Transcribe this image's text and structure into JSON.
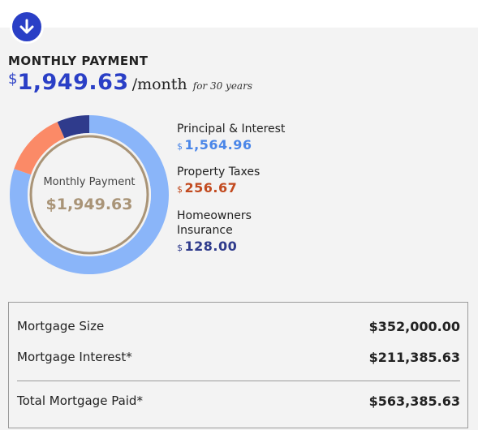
{
  "header": {
    "title": "MONTHLY PAYMENT",
    "currency_symbol": "$",
    "amount": "1,949.63",
    "per": "/month",
    "term": "for 30 years"
  },
  "donut": {
    "label": "Monthly Payment",
    "value": "$1,949.63"
  },
  "breakdown": [
    {
      "label": "Principal & Interest",
      "currency": "$",
      "value": "1,564.96",
      "amount": 1564.96,
      "color": "#8ab5f9"
    },
    {
      "label": "Property Taxes",
      "currency": "$",
      "value": "256.67",
      "amount": 256.67,
      "color": "#fb8a67"
    },
    {
      "label": "Homeowners\nInsurance",
      "currency": "$",
      "value": "128.00",
      "amount": 128.0,
      "color": "#2f3b8c"
    }
  ],
  "value_colors": [
    "#4a86e8",
    "#c24a1f",
    "#2f3b8c"
  ],
  "summary": {
    "rows": [
      {
        "label": "Mortgage Size",
        "value": "$352,000.00"
      },
      {
        "label": "Mortgage Interest*",
        "value": "$211,385.63"
      }
    ],
    "total": {
      "label": "Total Mortgage Paid*",
      "value": "$563,385.63"
    }
  },
  "icons": {
    "scroll": "arrow-down-icon"
  },
  "colors": {
    "accent": "#2a3fc6",
    "donut_center_text": "#a99477",
    "donut_center_ring": "#a99477"
  }
}
